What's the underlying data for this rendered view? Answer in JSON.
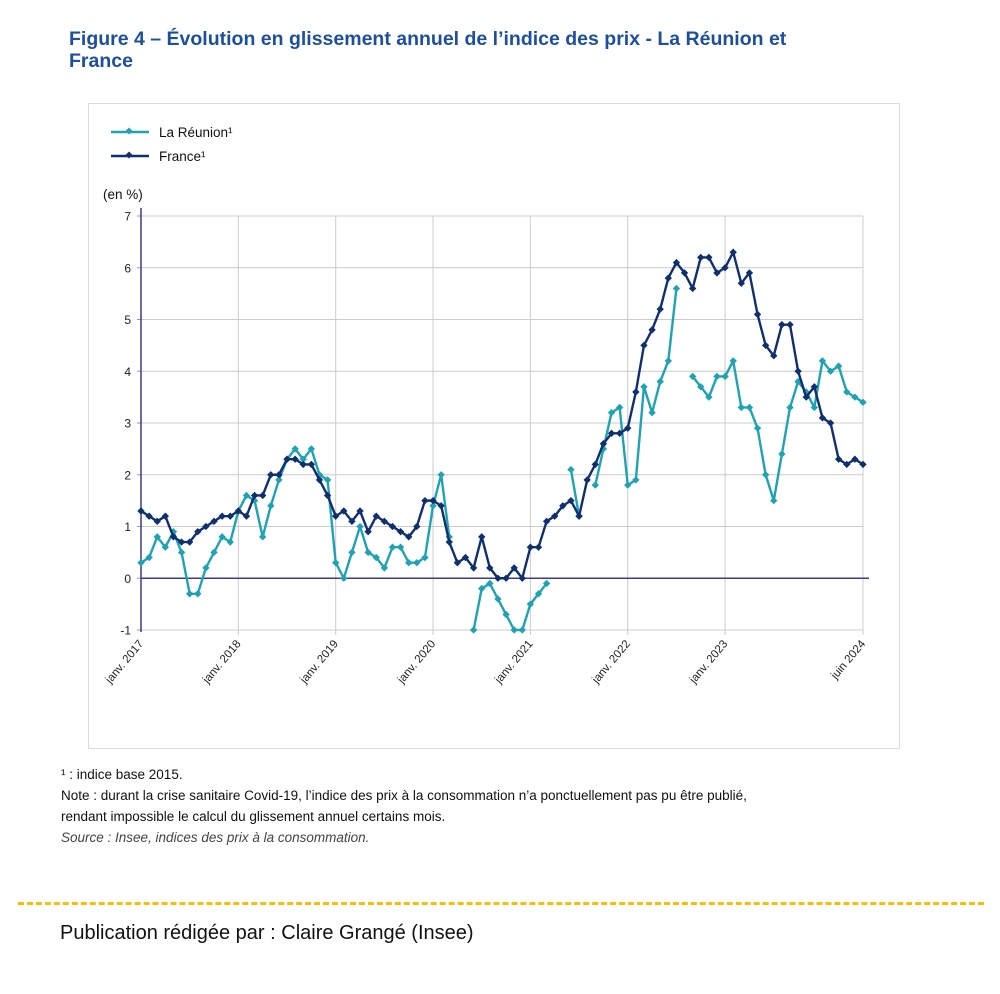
{
  "figure": {
    "title_line1": "Figure 4 – Évolution en glissement annuel de l’indice des prix - La Réunion et",
    "title_line2": "France"
  },
  "notes": {
    "footnote": "¹ : indice base 2015.",
    "note_line1": "Note : durant la crise sanitaire Covid-19, l’indice des prix à la consommation n’a ponctuellement pas pu être publié,",
    "note_line2": "rendant impossible le calcul du glissement annuel certains mois.",
    "source": "Source : Insee, indices des prix à la consommation."
  },
  "footer": {
    "author": "Publication rédigée par : Claire Grangé (Insee)"
  },
  "colors": {
    "title": "#1d4f9e",
    "reunion": "#1fa3b3",
    "france": "#0f2f6e",
    "zero_line": "#3b3b8f",
    "grid": "#cccccc",
    "divider": "#f5c002"
  },
  "chart_data": {
    "type": "line",
    "title": "Évolution en glissement annuel de l’indice des prix - La Réunion et France",
    "ylabel": "(en %)",
    "xlabel": "",
    "ylim": [
      -1,
      7
    ],
    "yticks": [
      -1,
      0,
      1,
      2,
      3,
      4,
      5,
      6,
      7
    ],
    "grid": true,
    "legend_position": "top-left",
    "x_start": "janv. 2017",
    "x_end": "juin 2024",
    "x_tick_labels": [
      {
        "month_index": 0,
        "label": "janv. 2017"
      },
      {
        "month_index": 12,
        "label": "janv. 2018"
      },
      {
        "month_index": 24,
        "label": "janv. 2019"
      },
      {
        "month_index": 36,
        "label": "janv. 2020"
      },
      {
        "month_index": 48,
        "label": "janv. 2021"
      },
      {
        "month_index": 60,
        "label": "janv. 2022"
      },
      {
        "month_index": 72,
        "label": "janv. 2023"
      },
      {
        "month_index": 89,
        "label": "juin 2024"
      }
    ],
    "series": [
      {
        "name": "La Réunion¹",
        "key": "reunion",
        "values": [
          0.3,
          0.4,
          0.8,
          0.6,
          0.9,
          0.5,
          -0.3,
          -0.3,
          0.2,
          0.5,
          0.8,
          0.7,
          1.3,
          1.6,
          1.5,
          0.8,
          1.4,
          1.9,
          2.3,
          2.5,
          2.3,
          2.5,
          2.0,
          1.9,
          0.3,
          0.0,
          0.5,
          1.0,
          0.5,
          0.4,
          0.2,
          0.6,
          0.6,
          0.3,
          0.3,
          0.4,
          1.4,
          2.0,
          0.8,
          null,
          null,
          -1.0,
          -0.2,
          -0.1,
          -0.4,
          -0.7,
          -1.0,
          -1.0,
          -0.5,
          -0.3,
          -0.1,
          null,
          null,
          2.1,
          1.2,
          null,
          1.8,
          2.5,
          3.2,
          3.3,
          1.8,
          1.9,
          3.7,
          3.2,
          3.8,
          4.2,
          5.6,
          null,
          3.9,
          3.7,
          3.5,
          3.9,
          3.9,
          4.2,
          3.3,
          3.3,
          2.9,
          2.0,
          1.5,
          2.4,
          3.3,
          3.8,
          3.6,
          3.3,
          4.2,
          4.0,
          4.1,
          3.6,
          3.5,
          3.4
        ]
      },
      {
        "name": "France¹",
        "key": "france",
        "values": [
          1.3,
          1.2,
          1.1,
          1.2,
          0.8,
          0.7,
          0.7,
          0.9,
          1.0,
          1.1,
          1.2,
          1.2,
          1.3,
          1.2,
          1.6,
          1.6,
          2.0,
          2.0,
          2.3,
          2.3,
          2.2,
          2.2,
          1.9,
          1.6,
          1.2,
          1.3,
          1.1,
          1.3,
          0.9,
          1.2,
          1.1,
          1.0,
          0.9,
          0.8,
          1.0,
          1.5,
          1.5,
          1.4,
          0.7,
          0.3,
          0.4,
          0.2,
          0.8,
          0.2,
          0.0,
          0.0,
          0.2,
          0.0,
          0.6,
          0.6,
          1.1,
          1.2,
          1.4,
          1.5,
          1.2,
          1.9,
          2.2,
          2.6,
          2.8,
          2.8,
          2.9,
          3.6,
          4.5,
          4.8,
          5.2,
          5.8,
          6.1,
          5.9,
          5.6,
          6.2,
          6.2,
          5.9,
          6.0,
          6.3,
          5.7,
          5.9,
          5.1,
          4.5,
          4.3,
          4.9,
          4.9,
          4.0,
          3.5,
          3.7,
          3.1,
          3.0,
          2.3,
          2.2,
          2.3,
          2.2
        ]
      }
    ]
  }
}
